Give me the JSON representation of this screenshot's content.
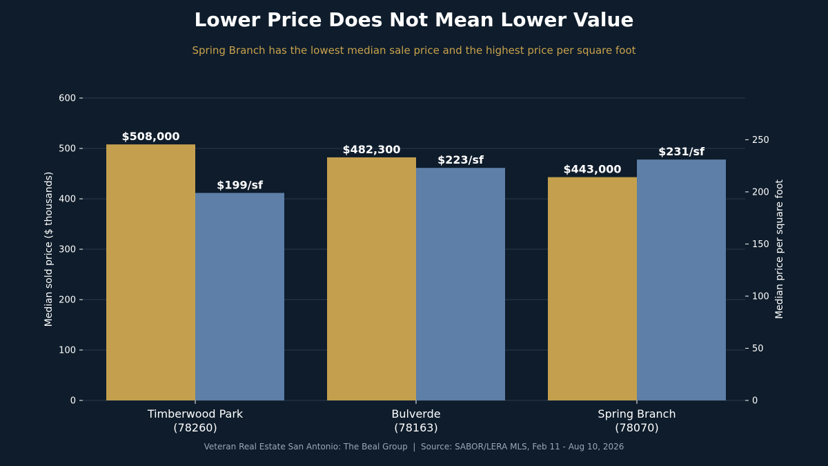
{
  "chart_data": {
    "type": "bar",
    "title": "Lower Price Does Not Mean Lower Value",
    "subtitle": "Spring Branch has the lowest median sale price and the highest price per square foot",
    "categories": [
      [
        "Timberwood Park",
        "(78260)"
      ],
      [
        "Bulverde",
        "(78163)"
      ],
      [
        "Spring Branch",
        "(78070)"
      ]
    ],
    "series": [
      {
        "axis": "left",
        "color": "#c4a04e",
        "values": [
          508,
          482.3,
          443
        ],
        "labels": [
          "$508,000",
          "$482,300",
          "$443,000"
        ]
      },
      {
        "axis": "right",
        "color": "#5d7fa8",
        "values": [
          199,
          223,
          231
        ],
        "labels": [
          "$199/sf",
          "$223/sf",
          "$231/sf"
        ]
      }
    ],
    "y_left": {
      "label": "Median sold price ($ thousands)",
      "ylim": [
        0,
        600
      ],
      "ticks": [
        0,
        100,
        200,
        300,
        400,
        500,
        600
      ]
    },
    "y_right": {
      "label": "Median price per square foot",
      "ylim": [
        0,
        290
      ],
      "ticks": [
        0,
        50,
        100,
        150,
        200,
        250
      ]
    },
    "grid": true,
    "footer": "Veteran Real Estate San Antonio: The Beal Group  |  Source: SABOR/LERA MLS, Feb 11 - Aug 10, 2026"
  }
}
